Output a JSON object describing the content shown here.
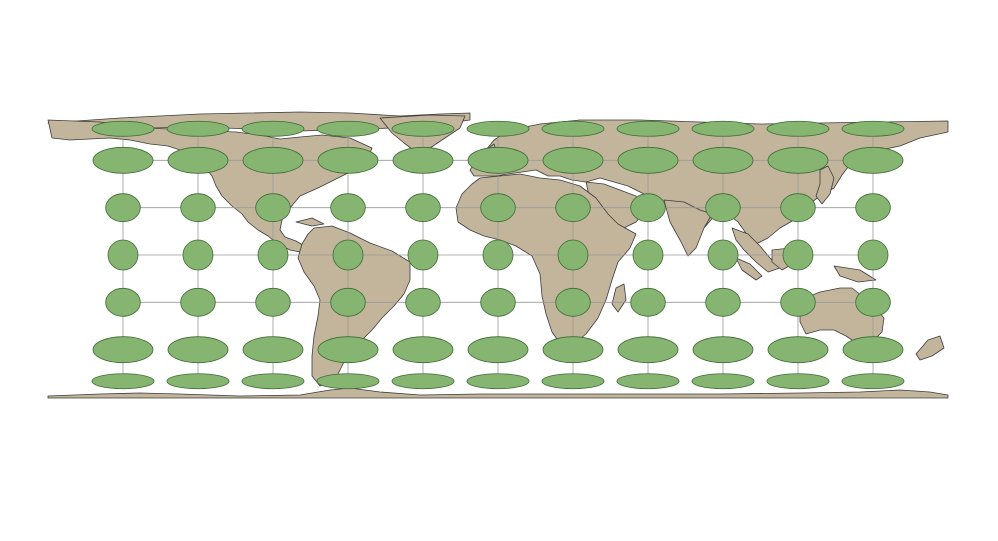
{
  "map": {
    "projection": "equirectangular",
    "extent": {
      "lon": [
        -180,
        180
      ],
      "lat": [
        -90,
        90
      ]
    },
    "graticule": {
      "lon_step": 30,
      "lat_step": 30
    },
    "colors": {
      "background": "#ffffff",
      "land": "#c2b59b",
      "land_stroke": "#3c3c3c",
      "graticule": "#9a9a9a",
      "indicatrix_fill": "#85b570",
      "indicatrix_stroke": "#3e6b34"
    },
    "tissot_indicatrices": {
      "longitudes": [
        -150,
        -120,
        -90,
        -60,
        -30,
        0,
        30,
        60,
        90,
        120,
        150
      ],
      "latitudes": [
        80,
        60,
        30,
        0,
        -30,
        -60,
        -80
      ],
      "radius_deg": 6
    }
  }
}
